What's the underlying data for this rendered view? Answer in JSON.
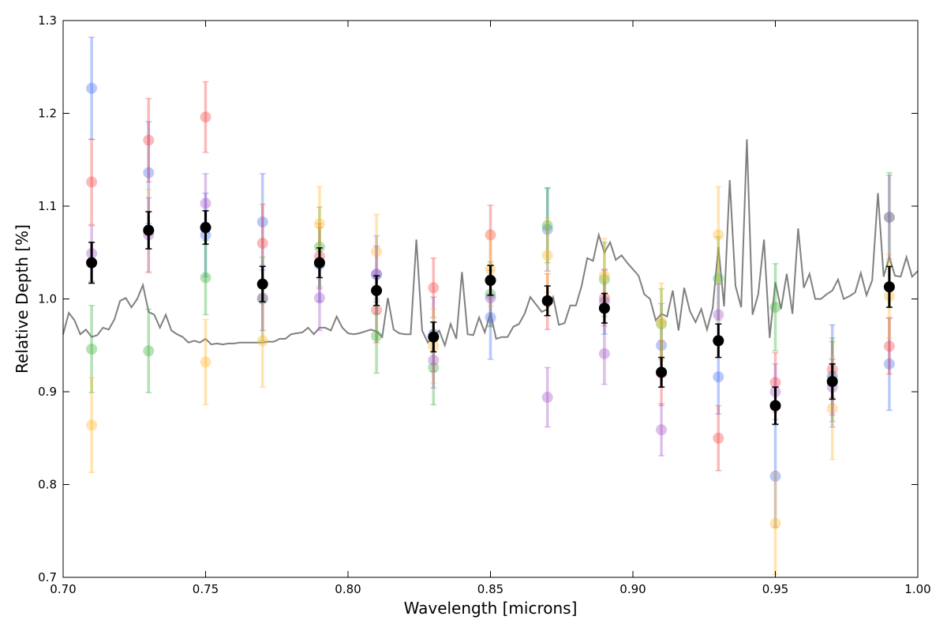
{
  "chart_data": {
    "type": "scatter",
    "title": "",
    "xlabel": "Wavelength [microns]",
    "ylabel": "Relative Depth [%]",
    "xlim": [
      0.7,
      1.0
    ],
    "ylim": [
      0.7,
      1.3
    ],
    "x_ticks": [
      "0.70",
      "0.75",
      "0.80",
      "0.85",
      "0.90",
      "0.95",
      "1.00"
    ],
    "y_ticks": [
      "0.7",
      "0.8",
      "0.9",
      "1.0",
      "1.1",
      "1.2",
      "1.3"
    ],
    "grid": false,
    "legend": "none",
    "series": [
      {
        "color": "#4a72f5",
        "points": [
          {
            "x": 0.71,
            "y": 1.227,
            "err": 0.055
          },
          {
            "x": 0.73,
            "y": 1.136,
            "err": 0.055
          },
          {
            "x": 0.75,
            "y": 1.069,
            "err": 0.045
          },
          {
            "x": 0.77,
            "y": 1.083,
            "err": 0.052
          },
          {
            "x": 0.79,
            "y": 1.037,
            "err": 0.04
          },
          {
            "x": 0.81,
            "y": 1.026,
            "err": 0.042
          },
          {
            "x": 0.83,
            "y": 0.962,
            "err": 0.04
          },
          {
            "x": 0.85,
            "y": 0.98,
            "err": 0.045
          },
          {
            "x": 0.87,
            "y": 1.075,
            "err": 0.045
          },
          {
            "x": 0.89,
            "y": 0.997,
            "err": 0.035
          },
          {
            "x": 0.91,
            "y": 0.95,
            "err": 0.045
          },
          {
            "x": 0.93,
            "y": 0.916,
            "err": 0.04
          },
          {
            "x": 0.95,
            "y": 0.809,
            "err": 0.055
          },
          {
            "x": 0.97,
            "y": 0.917,
            "err": 0.055
          },
          {
            "x": 0.99,
            "y": 0.93,
            "err": 0.05
          }
        ]
      },
      {
        "color": "#f54a4a",
        "points": [
          {
            "x": 0.71,
            "y": 1.126,
            "err": 0.046
          },
          {
            "x": 0.73,
            "y": 1.171,
            "err": 0.045
          },
          {
            "x": 0.75,
            "y": 1.196,
            "err": 0.038
          },
          {
            "x": 0.77,
            "y": 1.06,
            "err": 0.042
          },
          {
            "x": 0.79,
            "y": 1.046,
            "err": 0.035
          },
          {
            "x": 0.81,
            "y": 0.988,
            "err": 0.035
          },
          {
            "x": 0.83,
            "y": 1.012,
            "err": 0.032
          },
          {
            "x": 0.85,
            "y": 1.069,
            "err": 0.032
          },
          {
            "x": 0.87,
            "y": 0.997,
            "err": 0.03
          },
          {
            "x": 0.89,
            "y": 1.001,
            "err": 0.03
          },
          {
            "x": 0.91,
            "y": 0.92,
            "err": 0.035
          },
          {
            "x": 0.93,
            "y": 0.85,
            "err": 0.035
          },
          {
            "x": 0.95,
            "y": 0.91,
            "err": 0.032
          },
          {
            "x": 0.97,
            "y": 0.924,
            "err": 0.03
          },
          {
            "x": 0.99,
            "y": 0.949,
            "err": 0.03
          }
        ]
      },
      {
        "color": "#3cb43c",
        "points": [
          {
            "x": 0.71,
            "y": 0.946,
            "err": 0.047
          },
          {
            "x": 0.73,
            "y": 0.944,
            "err": 0.045
          },
          {
            "x": 0.75,
            "y": 1.023,
            "err": 0.04
          },
          {
            "x": 0.77,
            "y": 1.0,
            "err": 0.045
          },
          {
            "x": 0.79,
            "y": 1.056,
            "err": 0.043
          },
          {
            "x": 0.81,
            "y": 0.96,
            "err": 0.04
          },
          {
            "x": 0.83,
            "y": 0.926,
            "err": 0.04
          },
          {
            "x": 0.85,
            "y": 1.005,
            "err": 0.035
          },
          {
            "x": 0.87,
            "y": 1.079,
            "err": 0.04
          },
          {
            "x": 0.89,
            "y": 1.021,
            "err": 0.04
          },
          {
            "x": 0.91,
            "y": 0.973,
            "err": 0.038
          },
          {
            "x": 0.93,
            "y": 1.022,
            "err": 0.045
          },
          {
            "x": 0.95,
            "y": 0.991,
            "err": 0.047
          },
          {
            "x": 0.97,
            "y": 0.913,
            "err": 0.045
          },
          {
            "x": 0.99,
            "y": 1.088,
            "err": 0.048
          }
        ]
      },
      {
        "color": "#ffb830",
        "points": [
          {
            "x": 0.71,
            "y": 0.864,
            "err": 0.051
          },
          {
            "x": 0.73,
            "y": 1.073,
            "err": 0.045
          },
          {
            "x": 0.75,
            "y": 0.932,
            "err": 0.046
          },
          {
            "x": 0.77,
            "y": 0.955,
            "err": 0.05
          },
          {
            "x": 0.79,
            "y": 1.081,
            "err": 0.04
          },
          {
            "x": 0.81,
            "y": 1.051,
            "err": 0.04
          },
          {
            "x": 0.83,
            "y": 0.949,
            "err": 0.04
          },
          {
            "x": 0.85,
            "y": 1.032,
            "err": 0.04
          },
          {
            "x": 0.87,
            "y": 1.047,
            "err": 0.04
          },
          {
            "x": 0.89,
            "y": 1.025,
            "err": 0.04
          },
          {
            "x": 0.91,
            "y": 0.975,
            "err": 0.042
          },
          {
            "x": 0.93,
            "y": 1.069,
            "err": 0.052
          },
          {
            "x": 0.95,
            "y": 0.758,
            "err": 0.055
          },
          {
            "x": 0.97,
            "y": 0.882,
            "err": 0.055
          },
          {
            "x": 0.99,
            "y": 1.003,
            "err": 0.045
          }
        ]
      },
      {
        "color": "#a55ac8",
        "points": [
          {
            "x": 0.71,
            "y": 1.049,
            "err": 0.03
          },
          {
            "x": 0.73,
            "y": 1.069,
            "err": 0.04
          },
          {
            "x": 0.75,
            "y": 1.103,
            "err": 0.032
          },
          {
            "x": 0.77,
            "y": 1.001,
            "err": 0.035
          },
          {
            "x": 0.79,
            "y": 1.001,
            "err": 0.035
          },
          {
            "x": 0.81,
            "y": 1.027,
            "err": 0.03
          },
          {
            "x": 0.83,
            "y": 0.934,
            "err": 0.03
          },
          {
            "x": 0.85,
            "y": 1.001,
            "err": 0.03
          },
          {
            "x": 0.87,
            "y": 0.894,
            "err": 0.032
          },
          {
            "x": 0.89,
            "y": 0.941,
            "err": 0.033
          },
          {
            "x": 0.91,
            "y": 0.859,
            "err": 0.028
          },
          {
            "x": 0.93,
            "y": 0.983,
            "err": 0.033
          },
          {
            "x": 0.95,
            "y": 0.9,
            "err": 0.03
          },
          {
            "x": 0.97,
            "y": 0.905,
            "err": 0.03
          },
          {
            "x": 0.99,
            "y": 1.088,
            "err": 0.045
          }
        ]
      },
      {
        "color": "#000000",
        "points": [
          {
            "x": 0.71,
            "y": 1.039,
            "err": 0.022
          },
          {
            "x": 0.73,
            "y": 1.074,
            "err": 0.02
          },
          {
            "x": 0.75,
            "y": 1.077,
            "err": 0.018
          },
          {
            "x": 0.77,
            "y": 1.016,
            "err": 0.019
          },
          {
            "x": 0.79,
            "y": 1.039,
            "err": 0.016
          },
          {
            "x": 0.81,
            "y": 1.009,
            "err": 0.016
          },
          {
            "x": 0.83,
            "y": 0.959,
            "err": 0.016
          },
          {
            "x": 0.85,
            "y": 1.02,
            "err": 0.016
          },
          {
            "x": 0.87,
            "y": 0.998,
            "err": 0.016
          },
          {
            "x": 0.89,
            "y": 0.99,
            "err": 0.016
          },
          {
            "x": 0.91,
            "y": 0.921,
            "err": 0.016
          },
          {
            "x": 0.93,
            "y": 0.955,
            "err": 0.018
          },
          {
            "x": 0.95,
            "y": 0.885,
            "err": 0.02
          },
          {
            "x": 0.97,
            "y": 0.911,
            "err": 0.019
          },
          {
            "x": 0.99,
            "y": 1.013,
            "err": 0.022
          }
        ]
      }
    ],
    "model_line": {
      "color": "#808080",
      "x": [
        0.7,
        0.702,
        0.704,
        0.706,
        0.708,
        0.71,
        0.712,
        0.714,
        0.716,
        0.718,
        0.72,
        0.722,
        0.724,
        0.726,
        0.728,
        0.73,
        0.732,
        0.734,
        0.736,
        0.738,
        0.74,
        0.742,
        0.744,
        0.746,
        0.748,
        0.75,
        0.752,
        0.754,
        0.756,
        0.758,
        0.76,
        0.762,
        0.764,
        0.766,
        0.768,
        0.77,
        0.772,
        0.774,
        0.776,
        0.778,
        0.78,
        0.782,
        0.784,
        0.786,
        0.788,
        0.79,
        0.792,
        0.794,
        0.796,
        0.798,
        0.8,
        0.802,
        0.804,
        0.806,
        0.808,
        0.81,
        0.812,
        0.814,
        0.816,
        0.818,
        0.82,
        0.822,
        0.824,
        0.826,
        0.828,
        0.83,
        0.832,
        0.834,
        0.836,
        0.838,
        0.84,
        0.842,
        0.844,
        0.846,
        0.848,
        0.85,
        0.852,
        0.854,
        0.856,
        0.858,
        0.86,
        0.862,
        0.864,
        0.866,
        0.868,
        0.87,
        0.872,
        0.874,
        0.876,
        0.878,
        0.88,
        0.882,
        0.884,
        0.886,
        0.888,
        0.89,
        0.892,
        0.894,
        0.896,
        0.898,
        0.9,
        0.902,
        0.904,
        0.906,
        0.908,
        0.91,
        0.912,
        0.914,
        0.916,
        0.918,
        0.92,
        0.922,
        0.924,
        0.926,
        0.928,
        0.93,
        0.932,
        0.934,
        0.936,
        0.938,
        0.94,
        0.942,
        0.944,
        0.946,
        0.948,
        0.95,
        0.952,
        0.954,
        0.956,
        0.958,
        0.96,
        0.962,
        0.964,
        0.966,
        0.968,
        0.97,
        0.972,
        0.974,
        0.976,
        0.978,
        0.98,
        0.982,
        0.984,
        0.986,
        0.988,
        0.99,
        0.992,
        0.994,
        0.996,
        0.998,
        1.0
      ],
      "y": [
        0.962,
        0.985,
        0.977,
        0.962,
        0.967,
        0.959,
        0.961,
        0.969,
        0.967,
        0.978,
        0.998,
        1.001,
        0.991,
        1.0,
        1.015,
        0.986,
        0.983,
        0.969,
        0.983,
        0.966,
        0.962,
        0.959,
        0.953,
        0.955,
        0.953,
        0.957,
        0.951,
        0.952,
        0.951,
        0.952,
        0.952,
        0.953,
        0.953,
        0.953,
        0.953,
        0.953,
        0.954,
        0.954,
        0.957,
        0.957,
        0.962,
        0.963,
        0.964,
        0.969,
        0.962,
        0.969,
        0.969,
        0.966,
        0.981,
        0.969,
        0.963,
        0.962,
        0.963,
        0.965,
        0.967,
        0.965,
        0.959,
        1.001,
        0.967,
        0.963,
        0.962,
        0.962,
        1.064,
        0.966,
        0.953,
        0.96,
        0.966,
        0.95,
        0.973,
        0.957,
        1.029,
        0.962,
        0.961,
        0.98,
        0.964,
        0.985,
        0.957,
        0.959,
        0.959,
        0.97,
        0.973,
        0.984,
        1.002,
        0.994,
        0.986,
        0.989,
        1.002,
        0.972,
        0.974,
        0.993,
        0.993,
        1.014,
        1.044,
        1.041,
        1.069,
        1.05,
        1.061,
        1.042,
        1.047,
        1.039,
        1.032,
        1.025,
        1.005,
        1.0,
        0.977,
        0.984,
        0.981,
        1.009,
        0.966,
        1.012,
        0.987,
        0.975,
        0.989,
        0.967,
        0.99,
        1.056,
        0.992,
        1.128,
        1.014,
        0.991,
        1.172,
        0.983,
        1.005,
        1.064,
        0.958,
        1.018,
        0.989,
        1.027,
        0.984,
        1.076,
        1.012,
        1.027,
        1.0,
        1.0,
        1.005,
        1.009,
        1.021,
        1.0,
        1.003,
        1.007,
        1.028,
        1.004,
        1.02,
        1.114,
        1.024,
        1.045,
        1.025,
        1.024,
        1.045,
        1.024,
        1.03
      ]
    }
  }
}
